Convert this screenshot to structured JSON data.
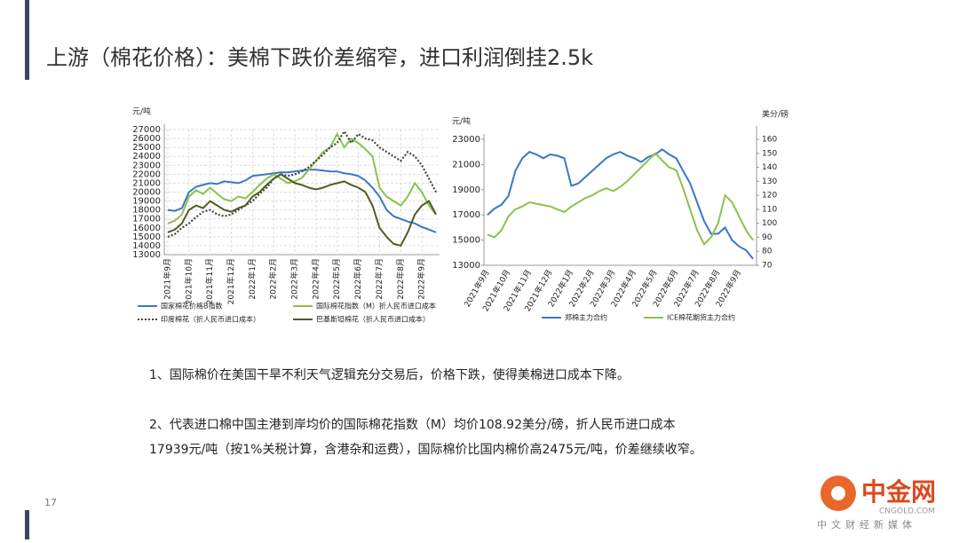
{
  "title": "上游（棉花价格）：美棉下跌价差缩窄，进口利润倒挂2.5k",
  "page_number": "17",
  "watermark": {
    "brand": "中金网",
    "site": "CNGOLD.COM",
    "slogan": "中文财经新媒体"
  },
  "notes": [
    [
      "1、国际棉价在美国干旱不利天气逻辑充分交易后，价格下跌，使得美棉进口成本下降。"
    ],
    [
      "2、代表进口棉中国主港到岸均价的国际棉花指数（M）均价108.92美分/磅，折人民币进口成本",
      "17939元/吨（按1%关税计算，含港杂和运费），国际棉价比国内棉价高2475元/吨，价差继续收窄。"
    ]
  ],
  "chart_data": [
    {
      "type": "line",
      "y_label": "元/吨",
      "grid": true,
      "categories": [
        "2021年9月",
        null,
        null,
        "2021年10月",
        null,
        null,
        "2021年11月",
        null,
        null,
        "2021年12月",
        null,
        null,
        "2022年1月",
        null,
        null,
        "2022年2月",
        null,
        null,
        "2022年3月",
        null,
        null,
        "2022年4月",
        null,
        null,
        "2022年5月",
        null,
        null,
        "2022年6月",
        null,
        null,
        "2022年7月",
        null,
        null,
        "2022年8月",
        null,
        null,
        "2022年9月",
        null,
        null
      ],
      "ylim": [
        13000,
        27000
      ],
      "yticks": [
        13000,
        14000,
        15000,
        16000,
        17000,
        18000,
        19000,
        20000,
        21000,
        22000,
        23000,
        24000,
        25000,
        26000,
        27000
      ],
      "series": [
        {
          "name": "国家棉花价格B指数",
          "color": "#3a78c3",
          "values": [
            18000,
            17900,
            18200,
            20000,
            20600,
            20800,
            21000,
            20900,
            21200,
            21100,
            21000,
            21300,
            21800,
            21900,
            22000,
            22100,
            22200,
            22200,
            22300,
            22400,
            22500,
            22500,
            22400,
            22300,
            22300,
            22100,
            22000,
            21800,
            21300,
            20500,
            19500,
            18000,
            17300,
            17000,
            16700,
            16500,
            16100,
            15800,
            15500
          ]
        },
        {
          "name": "国际棉花指数（M）折人民币进口成本",
          "color": "#8dc14b",
          "values": [
            16500,
            16800,
            17500,
            19500,
            20200,
            19800,
            20500,
            19800,
            19200,
            19000,
            19500,
            19300,
            20000,
            20800,
            21500,
            22000,
            21500,
            21000,
            21200,
            21600,
            22500,
            23500,
            24500,
            25000,
            26500,
            25000,
            26000,
            25500,
            24800,
            24000,
            20500,
            19500,
            19000,
            18500,
            19500,
            21000,
            20000,
            18500,
            17500
          ]
        },
        {
          "name": "印度棉花（折人民币进口成本）",
          "color": "#444444",
          "dash": "dotted",
          "values": [
            15000,
            15300,
            16000,
            16500,
            17200,
            17800,
            18000,
            17500,
            17300,
            17500,
            18000,
            18500,
            19000,
            19800,
            20500,
            21500,
            22000,
            21800,
            22000,
            22300,
            22800,
            23500,
            24200,
            25000,
            25500,
            26800,
            25500,
            26500,
            26000,
            25800,
            25000,
            24500,
            24000,
            23500,
            24500,
            24000,
            23000,
            21500,
            20000
          ]
        },
        {
          "name": "巴基斯坦棉花（折人民币进口成本）",
          "color": "#4f5d23",
          "values": [
            15500,
            15800,
            16500,
            18000,
            18500,
            18200,
            19000,
            18500,
            18000,
            17800,
            18200,
            18500,
            19500,
            20000,
            20800,
            21500,
            22000,
            21500,
            21000,
            20800,
            20500,
            20300,
            20500,
            20800,
            21000,
            21200,
            20800,
            20500,
            20000,
            18500,
            16000,
            15000,
            14200,
            14000,
            15500,
            17500,
            18500,
            19000,
            17500
          ]
        }
      ]
    },
    {
      "type": "line",
      "y_label": "元/吨",
      "y2_label": "美分/磅",
      "grid": false,
      "categories": [
        "2021年9月",
        null,
        null,
        "2021年10月",
        null,
        null,
        "2021年11月",
        null,
        null,
        "2021年12月",
        null,
        null,
        "2022年1月",
        null,
        null,
        "2022年2月",
        null,
        null,
        "2022年3月",
        null,
        null,
        "2022年4月",
        null,
        null,
        "2022年5月",
        null,
        null,
        "2022年6月",
        null,
        null,
        "2022年7月",
        null,
        null,
        "2022年8月",
        null,
        null,
        "2022年9月",
        null,
        null
      ],
      "ylim": [
        13000,
        23000
      ],
      "yticks": [
        13000,
        15000,
        17000,
        19000,
        21000,
        23000
      ],
      "y2lim": [
        70,
        160
      ],
      "y2ticks": [
        70,
        80,
        90,
        100,
        110,
        120,
        130,
        140,
        150,
        160
      ],
      "series": [
        {
          "name": "郑棉主力合约",
          "color": "#3a78c3",
          "values": [
            17000,
            17500,
            17800,
            18500,
            20500,
            21500,
            22000,
            21800,
            21500,
            21800,
            21700,
            21500,
            19300,
            19500,
            20000,
            20500,
            21000,
            21500,
            21800,
            22000,
            21700,
            21500,
            21200,
            21600,
            21800,
            22200,
            21800,
            21500,
            20500,
            19500,
            18000,
            16500,
            15500,
            15500,
            16000,
            15000,
            14500,
            14200,
            13500
          ]
        },
        {
          "name": "ICE棉花期货主力合约",
          "color": "#8dc14b",
          "axis": "y2",
          "values": [
            92,
            90,
            95,
            105,
            110,
            112,
            115,
            114,
            113,
            112,
            110,
            108,
            112,
            115,
            118,
            120,
            123,
            125,
            123,
            126,
            130,
            135,
            140,
            145,
            150,
            145,
            140,
            138,
            125,
            110,
            95,
            85,
            90,
            100,
            120,
            115,
            105,
            95,
            88
          ]
        }
      ]
    }
  ]
}
